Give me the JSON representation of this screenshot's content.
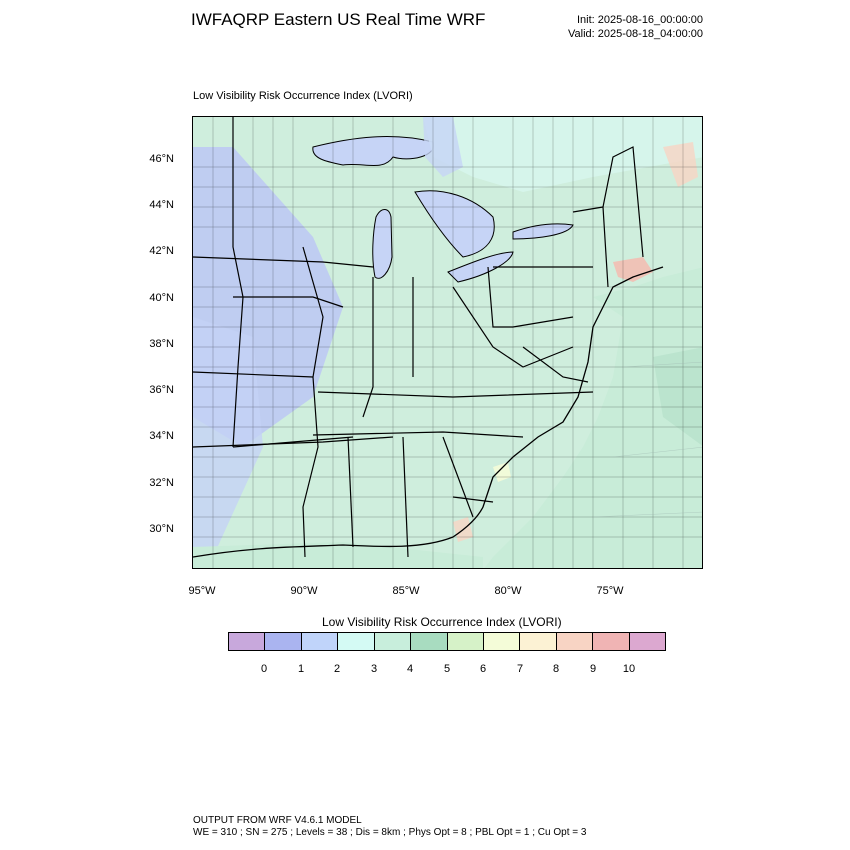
{
  "header": {
    "title": "IWFAQRP Eastern US Real Time WRF",
    "init": "Init: 2025-08-16_00:00:00",
    "valid": "Valid: 2025-08-18_04:00:00"
  },
  "map": {
    "title": "Low Visibility Risk Occurrence Index   (LVORI)",
    "lat_labels": [
      "46°N",
      "44°N",
      "42°N",
      "40°N",
      "38°N",
      "36°N",
      "34°N",
      "32°N",
      "30°N"
    ],
    "lon_labels": [
      "95°W",
      "90°W",
      "85°W",
      "80°W",
      "75°W"
    ],
    "colors": {
      "land_base": "#cfeedd",
      "ocean": "#c8ecd8",
      "lakes": "#c6d4f6",
      "low_risk": "#b8c6f2",
      "mid_risk": "#a8dcc0",
      "high_risk": "#f4bbb0"
    }
  },
  "colorbar": {
    "title": "Low Visibility Risk Occurrence Index  (LVORI)",
    "labels": [
      "0",
      "1",
      "2",
      "3",
      "4",
      "5",
      "6",
      "7",
      "8",
      "9",
      "10"
    ],
    "colors": [
      "#c8a8dc",
      "#aab4f0",
      "#c0d4fa",
      "#d4faf4",
      "#c8eedc",
      "#a8dcc0",
      "#d6f2c8",
      "#f4fcd8",
      "#fcf2d4",
      "#f8d4c4",
      "#f0b4b4",
      "#dca8d0"
    ]
  },
  "footer": {
    "line1": "OUTPUT FROM WRF V4.6.1 MODEL",
    "line2": "WE = 310 ; SN = 275 ; Levels = 38 ; Dis = 8km ; Phys Opt = 8 ; PBL Opt = 1 ; Cu Opt = 3"
  }
}
